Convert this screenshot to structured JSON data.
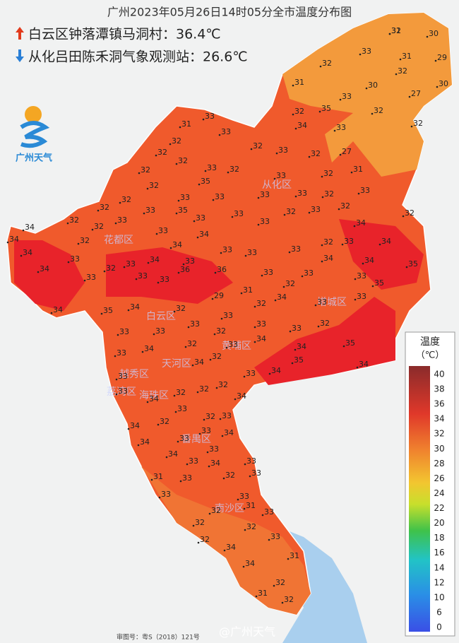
{
  "title": "广州2023年05月26日14时05分全市温度分布图",
  "highest": "白云区钟落潭镇马洞村：36.4℃",
  "lowest": "从化吕田陈禾洞气象观测站：26.6℃",
  "logo": "广州天气",
  "legend": {
    "title": "温度",
    "unit": "（℃）",
    "ticks": [
      40,
      38,
      36,
      34,
      32,
      30,
      28,
      26,
      24,
      22,
      20,
      18,
      16,
      14,
      12,
      10,
      6,
      0
    ]
  },
  "districts": [
    "从化区",
    "花都区",
    "白云区",
    "黄埔区",
    "增城区",
    "天河区",
    "越秀区",
    "荔湾区",
    "海珠区",
    "番禺区",
    "南沙区"
  ],
  "stations": [
    31,
    30,
    33,
    31,
    29,
    32,
    32,
    31,
    30,
    30,
    27,
    33,
    32,
    35,
    32,
    32,
    34,
    33,
    31,
    33,
    33,
    32,
    32,
    32,
    33,
    32,
    27,
    32,
    31,
    32,
    33,
    32,
    32,
    33,
    35,
    32,
    32,
    33,
    33,
    33,
    32,
    33,
    33,
    32,
    33,
    35,
    32,
    33,
    32,
    33,
    32,
    32,
    32,
    33,
    33,
    33,
    34,
    34,
    33,
    34,
    32,
    32,
    34,
    34,
    33,
    34,
    33,
    33,
    33,
    34,
    34,
    33,
    34,
    33,
    33,
    34,
    32,
    35,
    34,
    33,
    33,
    36,
    36,
    33,
    33,
    33,
    33,
    35,
    32,
    29,
    31,
    34,
    33,
    33,
    34,
    35,
    34,
    32,
    32,
    33,
    33,
    33,
    33,
    33,
    33,
    32,
    32,
    33,
    34,
    34,
    35,
    33,
    34,
    32,
    32,
    34,
    33,
    35,
    34,
    33,
    32,
    34,
    33,
    34,
    32,
    32,
    34,
    33,
    34,
    32,
    32,
    33,
    33,
    34,
    33,
    34,
    33,
    34,
    33,
    33,
    34,
    32,
    33,
    31,
    33,
    33,
    33,
    32,
    31,
    33,
    32,
    32,
    33,
    32,
    34,
    31,
    34,
    32,
    31,
    32,
    32
  ],
  "watermark": "@广州天气",
  "map_number": "审图号：粤S（2018）121号"
}
